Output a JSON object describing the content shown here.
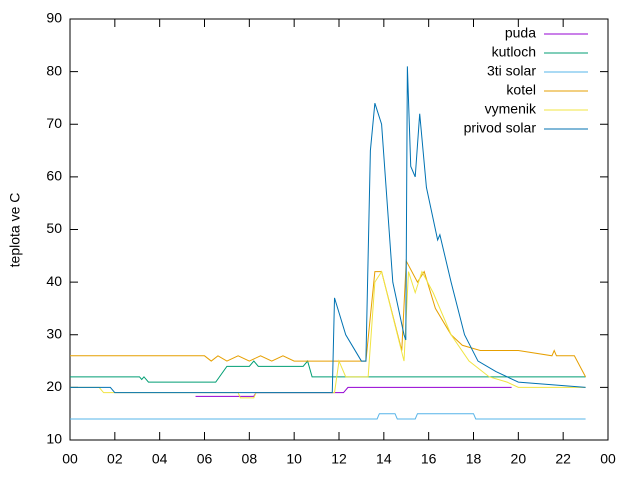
{
  "chart_data": {
    "type": "line",
    "ylabel": "teplota ve C",
    "xlim": [
      0,
      24
    ],
    "xticks": [
      {
        "value": 0,
        "label": "00"
      },
      {
        "value": 2,
        "label": "02"
      },
      {
        "value": 4,
        "label": "04"
      },
      {
        "value": 6,
        "label": "06"
      },
      {
        "value": 8,
        "label": "08"
      },
      {
        "value": 10,
        "label": "10"
      },
      12,
      14,
      16,
      18,
      20,
      22,
      {
        "value": 24,
        "label": "00"
      }
    ],
    "ylim": [
      10,
      90
    ],
    "yticks": [
      10,
      20,
      30,
      40,
      50,
      60,
      70,
      80,
      90
    ],
    "legend": "top-right",
    "series": [
      {
        "name": "puda",
        "color": "#9400d3",
        "x": [
          5.6,
          8.2,
          8.3,
          12.2,
          12.4,
          19.7
        ],
        "values": [
          18.3,
          18.3,
          19,
          19,
          20,
          20
        ]
      },
      {
        "name": "kutloch",
        "color": "#009e73",
        "x": [
          0,
          3.1,
          3.2,
          3.3,
          3.5,
          6.5,
          7,
          8,
          8.2,
          8.4,
          10.4,
          10.6,
          10.8,
          23
        ],
        "values": [
          22,
          22,
          21.5,
          22,
          21,
          21,
          24,
          24,
          25,
          24,
          24,
          25,
          22,
          22
        ]
      },
      {
        "name": "3ti solar",
        "color": "#56b4e9",
        "x": [
          0,
          13.7,
          13.8,
          14.5,
          14.6,
          15.4,
          15.5,
          18,
          18.1,
          23
        ],
        "values": [
          14,
          14,
          15,
          15,
          14,
          14,
          15,
          15,
          14,
          14
        ]
      },
      {
        "name": "kotel",
        "color": "#e69f00",
        "x": [
          0,
          6,
          6.3,
          6.6,
          7,
          7.5,
          8,
          8.5,
          9,
          9.5,
          10,
          12,
          13.2,
          13.6,
          13.9,
          14.8,
          15,
          15.5,
          15.8,
          16.3,
          17,
          17.5,
          18.3,
          20,
          21.5,
          21.6,
          21.7,
          22.5,
          23
        ],
        "values": [
          26,
          26,
          25,
          26,
          25,
          26,
          25,
          26,
          25,
          26,
          25,
          25,
          25,
          42,
          42,
          27,
          44,
          40,
          42,
          35,
          30,
          28,
          27,
          27,
          26,
          27,
          26,
          26,
          22
        ]
      },
      {
        "name": "vymenik",
        "color": "#f0e442",
        "x": [
          0,
          1.3,
          1.5,
          7.5,
          7.6,
          8.2,
          8.3,
          11.8,
          12,
          12.3,
          13.3,
          13.6,
          13.9,
          14.9,
          15.1,
          15.4,
          15.7,
          16.2,
          17,
          17.8,
          18.7,
          19.5,
          20,
          23
        ],
        "values": [
          20,
          20,
          19,
          19,
          18,
          18,
          19,
          19,
          25,
          22,
          22,
          40,
          42,
          25,
          42,
          38,
          42,
          38,
          30,
          25,
          22,
          21,
          20,
          20
        ]
      },
      {
        "name": "privod solar",
        "color": "#0072b2",
        "x": [
          0,
          1.8,
          2,
          11.7,
          11.8,
          12.3,
          13,
          13.2,
          13.4,
          13.6,
          13.9,
          14.4,
          14.9,
          14.98,
          15.05,
          15.2,
          15.4,
          15.6,
          15.9,
          16.4,
          16.5,
          17,
          17.6,
          18.2,
          19,
          20,
          23
        ],
        "values": [
          20,
          20,
          19,
          19,
          37,
          30,
          25,
          25,
          65,
          74,
          70,
          40,
          30,
          29,
          81,
          62,
          60,
          72,
          58,
          48,
          49,
          40,
          30,
          25,
          23,
          21,
          20
        ]
      }
    ]
  }
}
